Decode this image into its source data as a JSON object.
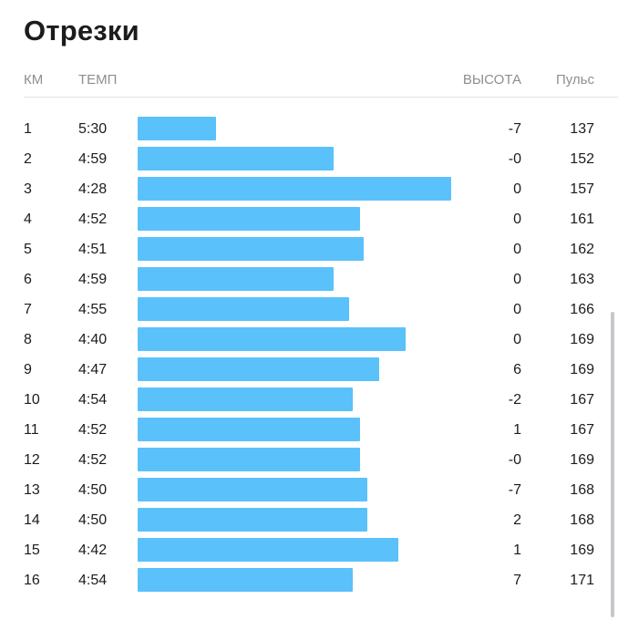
{
  "title": "Отрезки",
  "columns": {
    "km": "КМ",
    "pace": "ТЕМП",
    "elevation": "ВЫСОТА",
    "heart_rate": "Пульс"
  },
  "splits": [
    {
      "km": "1",
      "pace": "5:30",
      "pace_seconds": 330,
      "elevation": "-7",
      "heart_rate": "137"
    },
    {
      "km": "2",
      "pace": "4:59",
      "pace_seconds": 299,
      "elevation": "-0",
      "heart_rate": "152"
    },
    {
      "km": "3",
      "pace": "4:28",
      "pace_seconds": 268,
      "elevation": "0",
      "heart_rate": "157"
    },
    {
      "km": "4",
      "pace": "4:52",
      "pace_seconds": 292,
      "elevation": "0",
      "heart_rate": "161"
    },
    {
      "km": "5",
      "pace": "4:51",
      "pace_seconds": 291,
      "elevation": "0",
      "heart_rate": "162"
    },
    {
      "km": "6",
      "pace": "4:59",
      "pace_seconds": 299,
      "elevation": "0",
      "heart_rate": "163"
    },
    {
      "km": "7",
      "pace": "4:55",
      "pace_seconds": 295,
      "elevation": "0",
      "heart_rate": "166"
    },
    {
      "km": "8",
      "pace": "4:40",
      "pace_seconds": 280,
      "elevation": "0",
      "heart_rate": "169"
    },
    {
      "km": "9",
      "pace": "4:47",
      "pace_seconds": 287,
      "elevation": "6",
      "heart_rate": "169"
    },
    {
      "km": "10",
      "pace": "4:54",
      "pace_seconds": 294,
      "elevation": "-2",
      "heart_rate": "167"
    },
    {
      "km": "11",
      "pace": "4:52",
      "pace_seconds": 292,
      "elevation": "1",
      "heart_rate": "167"
    },
    {
      "km": "12",
      "pace": "4:52",
      "pace_seconds": 292,
      "elevation": "-0",
      "heart_rate": "169"
    },
    {
      "km": "13",
      "pace": "4:50",
      "pace_seconds": 290,
      "elevation": "-7",
      "heart_rate": "168"
    },
    {
      "km": "14",
      "pace": "4:50",
      "pace_seconds": 290,
      "elevation": "2",
      "heart_rate": "168"
    },
    {
      "km": "15",
      "pace": "4:42",
      "pace_seconds": 282,
      "elevation": "1",
      "heart_rate": "169"
    },
    {
      "km": "16",
      "pace": "4:54",
      "pace_seconds": 294,
      "elevation": "7",
      "heart_rate": "171"
    }
  ],
  "colors": {
    "bar": "#5ac1fb",
    "header_text": "#8e8e93",
    "text": "#1c1c1e"
  }
}
